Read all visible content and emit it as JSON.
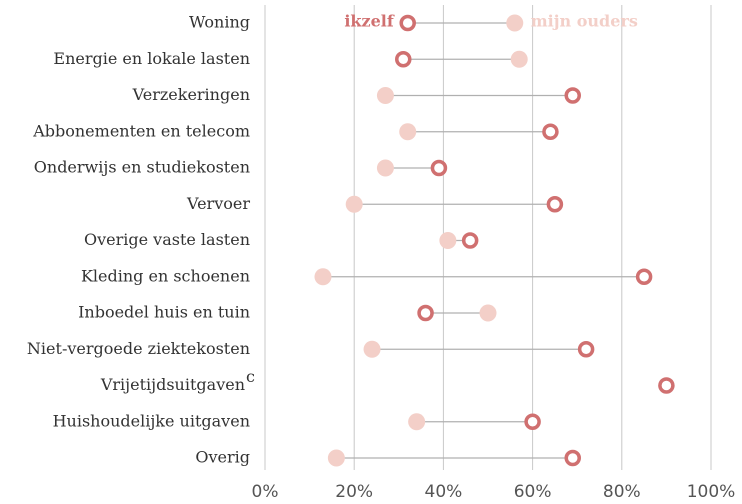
{
  "chart_data": {
    "type": "dumbbell",
    "categories": [
      "Woning",
      "Energie en lokale lasten",
      "Verzekeringen",
      "Abbonementen en telecom",
      "Onderwijs en studiekosten",
      "Vervoer",
      "Overige vaste lasten",
      "Kleding en schoenen",
      "Inboedel huis en tuin",
      "Niet-vergoede ziektekosten",
      "Vrijetijdsuitgaven",
      "Huishoudelijke uitgaven",
      "Overig"
    ],
    "category_notes": [
      null,
      null,
      null,
      null,
      null,
      null,
      null,
      null,
      null,
      null,
      "c",
      null,
      null
    ],
    "series": [
      {
        "name": "ikzelf",
        "color": "#d07070",
        "values": [
          32,
          31,
          69,
          64,
          39,
          65,
          46,
          85,
          36,
          72,
          90,
          60,
          69
        ]
      },
      {
        "name": "mijn ouders",
        "color": "#f3cfc8",
        "values": [
          56,
          57,
          27,
          32,
          27,
          20,
          41,
          13,
          50,
          24,
          null,
          34,
          16
        ]
      }
    ],
    "xlim": [
      0,
      100
    ],
    "xticks": [
      {
        "value": 0,
        "label": "0%"
      },
      {
        "value": 20,
        "label": "20%"
      },
      {
        "value": 40,
        "label": "40%"
      },
      {
        "value": 60,
        "label": "60%"
      },
      {
        "value": 80,
        "label": "80%"
      },
      {
        "value": 100,
        "label": "100%"
      }
    ],
    "grid": true
  }
}
